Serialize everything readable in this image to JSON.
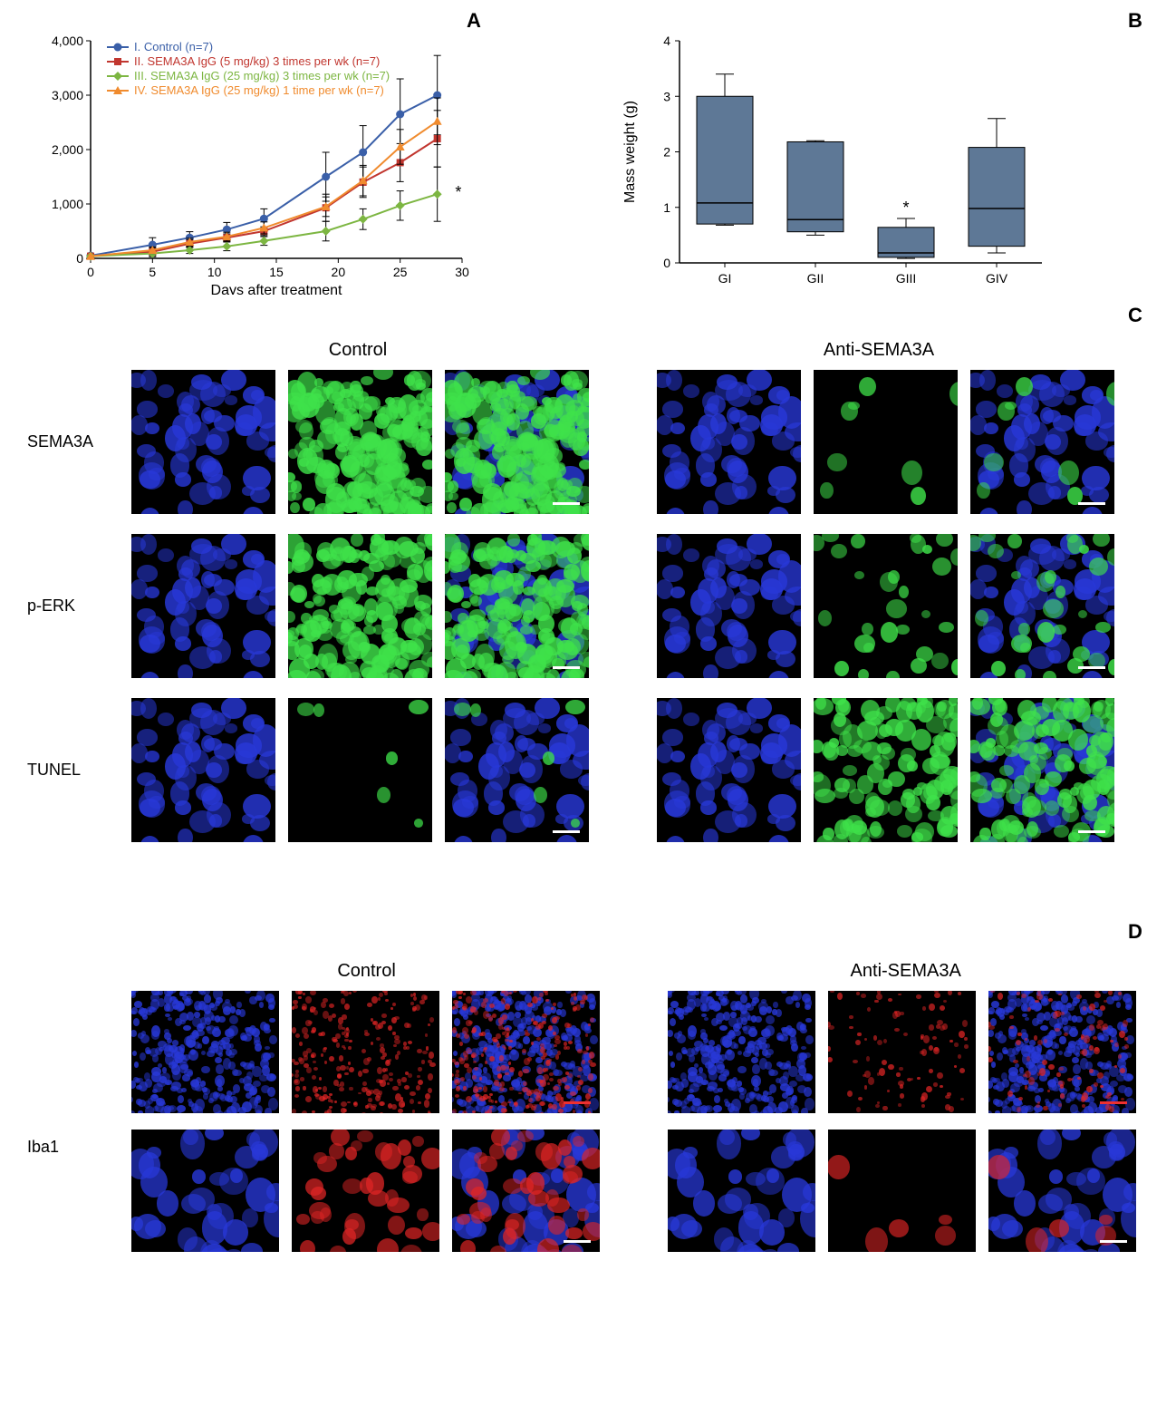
{
  "panelA": {
    "label": "A",
    "type": "line",
    "xlabel": "Days after treatment",
    "xlim": [
      0,
      30
    ],
    "xticks": [
      0,
      5,
      10,
      15,
      20,
      25,
      30
    ],
    "ylim": [
      0,
      4000
    ],
    "yticks": [
      0,
      1000,
      2000,
      3000,
      4000
    ],
    "ytick_labels": [
      "0",
      "1,000",
      "2,000",
      "3,000",
      "4,000"
    ],
    "legend": {
      "items": [
        {
          "label": "I. Control (n=7)",
          "color": "#3a5fa8",
          "marker": "circle"
        },
        {
          "label": "II. SEMA3A IgG (5 mg/kg) 3 times per wk (n=7)",
          "color": "#c1362f",
          "marker": "square"
        },
        {
          "label": "III. SEMA3A IgG (25 mg/kg) 3 times per wk (n=7)",
          "color": "#7db642",
          "marker": "diamond"
        },
        {
          "label": "IV. SEMA3A IgG (25 mg/kg) 1 time per wk (n=7)",
          "color": "#f08b2e",
          "marker": "triangle"
        }
      ]
    },
    "series": [
      {
        "color": "#3a5fa8",
        "marker": "circle",
        "x": [
          0,
          5,
          8,
          11,
          14,
          19,
          22,
          25,
          28
        ],
        "y": [
          50,
          250,
          380,
          530,
          730,
          1500,
          1950,
          2650,
          3000
        ],
        "err": [
          0,
          130,
          110,
          130,
          180,
          450,
          490,
          650,
          730
        ]
      },
      {
        "color": "#c1362f",
        "marker": "square",
        "x": [
          0,
          5,
          8,
          11,
          14,
          19,
          22,
          25,
          28
        ],
        "y": [
          40,
          120,
          270,
          380,
          500,
          930,
          1400,
          1760,
          2200
        ],
        "err": [
          0,
          70,
          70,
          70,
          80,
          250,
          280,
          350,
          520
        ]
      },
      {
        "color": "#7db642",
        "marker": "diamond",
        "x": [
          0,
          5,
          8,
          11,
          14,
          19,
          22,
          25,
          28
        ],
        "y": [
          40,
          90,
          150,
          220,
          320,
          500,
          720,
          970,
          1180
        ],
        "err": [
          0,
          60,
          60,
          80,
          80,
          180,
          190,
          270,
          500
        ]
      },
      {
        "color": "#f08b2e",
        "marker": "triangle",
        "x": [
          0,
          5,
          8,
          11,
          14,
          19,
          22,
          25,
          28
        ],
        "y": [
          40,
          150,
          300,
          400,
          560,
          950,
          1430,
          2050,
          2520
        ],
        "err": [
          0,
          60,
          70,
          80,
          110,
          180,
          280,
          320,
          430
        ]
      }
    ],
    "annotation": "*"
  },
  "panelB": {
    "label": "B",
    "type": "boxplot",
    "ylabel": "Mass weight (g)",
    "ylim": [
      0,
      4
    ],
    "yticks": [
      0,
      1,
      2,
      3,
      4
    ],
    "categories": [
      "GI",
      "GII",
      "GIII",
      "GIV"
    ],
    "box_color": "#5e7896",
    "boxes": [
      {
        "q1": 0.7,
        "med": 1.08,
        "q3": 3.0,
        "wl": 0.68,
        "wh": 3.4
      },
      {
        "q1": 0.56,
        "med": 0.78,
        "q3": 2.18,
        "wl": 0.5,
        "wh": 2.2
      },
      {
        "q1": 0.1,
        "med": 0.18,
        "q3": 0.64,
        "wl": 0.08,
        "wh": 0.8
      },
      {
        "q1": 0.3,
        "med": 0.98,
        "q3": 2.08,
        "wl": 0.18,
        "wh": 2.6
      }
    ],
    "annotation": {
      "text": "*",
      "index": 2
    }
  },
  "panelC": {
    "label": "C",
    "groups": [
      "Control",
      "Anti-SEMA3A"
    ],
    "rows": [
      "SEMA3A",
      "p-ERK",
      "TUNEL"
    ],
    "colors": {
      "dapi": "#2838d8",
      "green": "#3fe24a"
    }
  },
  "panelD": {
    "label": "D",
    "groups": [
      "Control",
      "Anti-SEMA3A"
    ],
    "rows": [
      "Iba1"
    ],
    "colors": {
      "dapi": "#2838d8",
      "red": "#e02525"
    }
  }
}
